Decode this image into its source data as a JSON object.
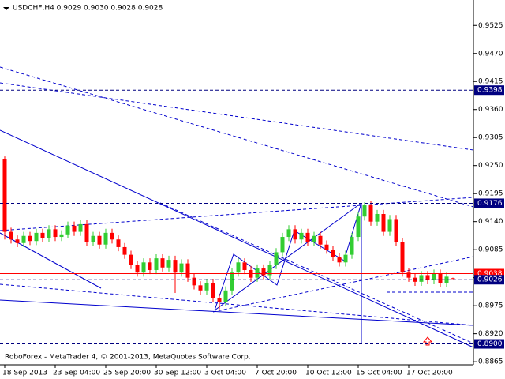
{
  "chart_data": {
    "type": "candlestick",
    "title": "USDCHF,H4  0.9029 0.9030 0.9028 0.9028",
    "footer": "RoboForex - MetaTrader 4, © 2001-2013, MetaQuotes Software Corp.",
    "up_color": "#32cd32",
    "down_color": "#ff0000",
    "open": [
      0.9262,
      0.912,
      0.9105,
      0.9098,
      0.9112,
      0.9102,
      0.9118,
      0.9108,
      0.9125,
      0.911,
      0.9115,
      0.9132,
      0.912,
      0.9135,
      0.91,
      0.9112,
      0.9095,
      0.9118,
      0.9105,
      0.909,
      0.9075,
      0.9055,
      0.904,
      0.906,
      0.9045,
      0.9068,
      0.905,
      0.9065,
      0.904,
      0.9058,
      0.903,
      0.9015,
      0.9005,
      0.902,
      0.899,
      0.8982,
      0.9005,
      0.904,
      0.906,
      0.9045,
      0.903,
      0.9048,
      0.9035,
      0.9055,
      0.908,
      0.911,
      0.9125,
      0.9105,
      0.9118,
      0.91,
      0.9112,
      0.9095,
      0.9085,
      0.907,
      0.906,
      0.9075,
      0.911,
      0.915,
      0.9172,
      0.914,
      0.9155,
      0.912,
      0.9145,
      0.91,
      0.904,
      0.903,
      0.9022,
      0.9035,
      0.9025,
      0.9038,
      0.902,
      0.9029
    ],
    "high": [
      0.9268,
      0.9128,
      0.9113,
      0.912,
      0.912,
      0.9126,
      0.9126,
      0.9133,
      0.9133,
      0.9123,
      0.914,
      0.914,
      0.9143,
      0.9143,
      0.912,
      0.912,
      0.9126,
      0.9126,
      0.9113,
      0.9098,
      0.9083,
      0.9063,
      0.9068,
      0.9068,
      0.9076,
      0.9076,
      0.9073,
      0.9073,
      0.9066,
      0.9066,
      0.9038,
      0.9023,
      0.9028,
      0.9028,
      0.8998,
      0.9013,
      0.9048,
      0.9068,
      0.9068,
      0.9053,
      0.9056,
      0.9056,
      0.9063,
      0.9088,
      0.9118,
      0.9133,
      0.9133,
      0.9126,
      0.9126,
      0.912,
      0.912,
      0.9103,
      0.9093,
      0.9078,
      0.9083,
      0.9118,
      0.9158,
      0.9178,
      0.918,
      0.9163,
      0.9163,
      0.9153,
      0.9153,
      0.9108,
      0.9048,
      0.9038,
      0.9043,
      0.9043,
      0.9046,
      0.9046,
      0.904,
      0.903
    ],
    "low": [
      0.9105,
      0.9097,
      0.909,
      0.909,
      0.9094,
      0.9094,
      0.91,
      0.91,
      0.9102,
      0.9102,
      0.9107,
      0.9112,
      0.9112,
      0.9092,
      0.9092,
      0.9087,
      0.9087,
      0.9097,
      0.9082,
      0.9067,
      0.9047,
      0.9032,
      0.9032,
      0.9037,
      0.9037,
      0.9042,
      0.9042,
      0.9,
      0.9032,
      0.9022,
      0.9007,
      0.8997,
      0.8997,
      0.8982,
      0.8968,
      0.8974,
      0.8997,
      0.9032,
      0.9037,
      0.9022,
      0.9022,
      0.9027,
      0.9027,
      0.9047,
      0.9072,
      0.9102,
      0.9097,
      0.9097,
      0.9092,
      0.9092,
      0.9087,
      0.9077,
      0.9062,
      0.9052,
      0.9052,
      0.9067,
      0.9102,
      0.9142,
      0.9132,
      0.9132,
      0.9112,
      0.9112,
      0.9092,
      0.9032,
      0.9022,
      0.9014,
      0.9014,
      0.9017,
      0.9017,
      0.9012,
      0.9012,
      0.9028
    ],
    "close": [
      0.912,
      0.9105,
      0.9098,
      0.9112,
      0.9102,
      0.9118,
      0.9108,
      0.9125,
      0.911,
      0.9115,
      0.9132,
      0.912,
      0.9135,
      0.91,
      0.9112,
      0.9095,
      0.9118,
      0.9105,
      0.909,
      0.9075,
      0.9055,
      0.904,
      0.906,
      0.9045,
      0.9068,
      0.905,
      0.9065,
      0.904,
      0.9058,
      0.903,
      0.9015,
      0.9005,
      0.902,
      0.899,
      0.8982,
      0.9005,
      0.904,
      0.906,
      0.9045,
      0.903,
      0.9048,
      0.9035,
      0.9055,
      0.908,
      0.911,
      0.9125,
      0.9105,
      0.9118,
      0.91,
      0.9112,
      0.9095,
      0.9085,
      0.907,
      0.906,
      0.9075,
      0.911,
      0.915,
      0.9172,
      0.914,
      0.9155,
      0.912,
      0.9145,
      0.91,
      0.904,
      0.903,
      0.9022,
      0.9035,
      0.9025,
      0.9038,
      0.902,
      0.9032,
      0.9028
    ],
    "xticks": [
      {
        "value": 0,
        "label": "18 Sep 2013"
      },
      {
        "value": 8,
        "label": "23 Sep 04:00"
      },
      {
        "value": 16,
        "label": "25 Sep 20:00"
      },
      {
        "value": 24,
        "label": "30 Sep 12:00"
      },
      {
        "value": 32,
        "label": "3 Oct 04:00"
      },
      {
        "value": 40,
        "label": "7 Oct 20:00"
      },
      {
        "value": 48,
        "label": "10 Oct 12:00"
      },
      {
        "value": 56,
        "label": "15 Oct 04:00"
      },
      {
        "value": 64,
        "label": "17 Oct 20:00"
      }
    ],
    "ylim": [
      0.8859,
      0.9575
    ],
    "yticks": [
      0.9525,
      {
        "value": 0.947,
        "label": "0.9470"
      },
      0.9415,
      {
        "value": 0.936,
        "label": "0.9360"
      },
      0.9305,
      {
        "value": 0.925,
        "label": "0.9250"
      },
      0.9195,
      {
        "value": 0.914,
        "label": "0.9140"
      },
      0.9085,
      {
        "value": 0.903,
        "label": "0.9030"
      },
      0.8975,
      {
        "value": 0.892,
        "label": "0.8920"
      },
      0.8865
    ],
    "levels": [
      {
        "value": 0.9398,
        "label": "0.9398",
        "color": "#000080",
        "dashed": true
      },
      {
        "value": 0.9176,
        "label": "0.9176",
        "color": "#000080",
        "dashed": true
      },
      {
        "value": 0.9038,
        "label": "0.9038",
        "color": "#ff0000",
        "dashed": false
      },
      {
        "value": 0.9026,
        "label": "0.9026",
        "color": "#000080",
        "dashed": true
      },
      {
        "value": 0.89,
        "label": "0.8900",
        "color": "#000080",
        "dashed": true
      }
    ]
  }
}
